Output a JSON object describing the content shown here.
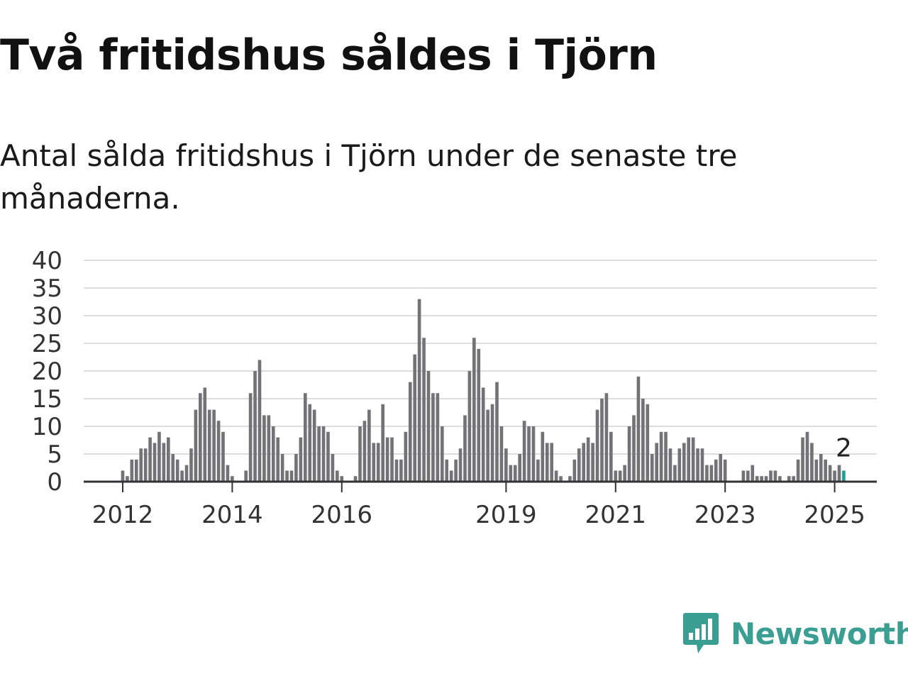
{
  "title": "Två fritidshus såldes i Tjörn",
  "subtitle": "Antal sålda fritidshus i Tjörn under de senaste tre månaderna.",
  "brand": {
    "name": "Newsworthy",
    "color": "#3a9e92",
    "icon": "speech-bubble-bar-chart-icon"
  },
  "colors": {
    "bar": "#737276",
    "highlight": "#1f9e92",
    "grid": "#dddddd",
    "axis": "#333333"
  },
  "chart_data": {
    "type": "bar",
    "ylim": [
      0,
      40
    ],
    "yticks": [
      "0",
      "5",
      "10",
      "15",
      "20",
      "25",
      "30",
      "35",
      "40"
    ],
    "xtick_labels": [
      "2012",
      "2014",
      "2016",
      "2019",
      "2021",
      "2023",
      "2025"
    ],
    "xtick_positions": [
      2012,
      2014,
      2016,
      2019,
      2021,
      2023,
      2025
    ],
    "x_start": 2011.333,
    "bars_per_year": 12,
    "grid": true,
    "highlight_label": "2",
    "values": [
      0,
      0,
      0,
      0,
      0,
      0,
      0,
      0,
      2,
      1,
      4,
      4,
      6,
      6,
      8,
      7,
      9,
      7,
      8,
      5,
      4,
      2,
      3,
      6,
      13,
      16,
      17,
      13,
      13,
      11,
      9,
      3,
      1,
      0,
      0,
      2,
      16,
      20,
      22,
      12,
      12,
      10,
      8,
      5,
      2,
      2,
      5,
      8,
      16,
      14,
      13,
      10,
      10,
      9,
      5,
      2,
      1,
      0,
      0,
      1,
      10,
      11,
      13,
      7,
      7,
      14,
      8,
      8,
      4,
      4,
      9,
      18,
      23,
      33,
      26,
      20,
      16,
      16,
      10,
      4,
      2,
      4,
      6,
      12,
      20,
      26,
      24,
      17,
      13,
      14,
      18,
      10,
      6,
      3,
      3,
      5,
      11,
      10,
      10,
      4,
      9,
      7,
      7,
      2,
      1,
      0,
      1,
      4,
      6,
      7,
      8,
      7,
      13,
      15,
      16,
      9,
      2,
      2,
      3,
      10,
      12,
      19,
      15,
      14,
      5,
      7,
      9,
      9,
      6,
      3,
      6,
      7,
      8,
      8,
      6,
      6,
      3,
      3,
      4,
      5,
      4,
      0,
      0,
      0,
      2,
      2,
      3,
      1,
      1,
      1,
      2,
      2,
      1,
      0,
      1,
      1,
      4,
      8,
      9,
      7,
      4,
      5,
      4,
      3,
      2,
      3,
      2
    ]
  }
}
